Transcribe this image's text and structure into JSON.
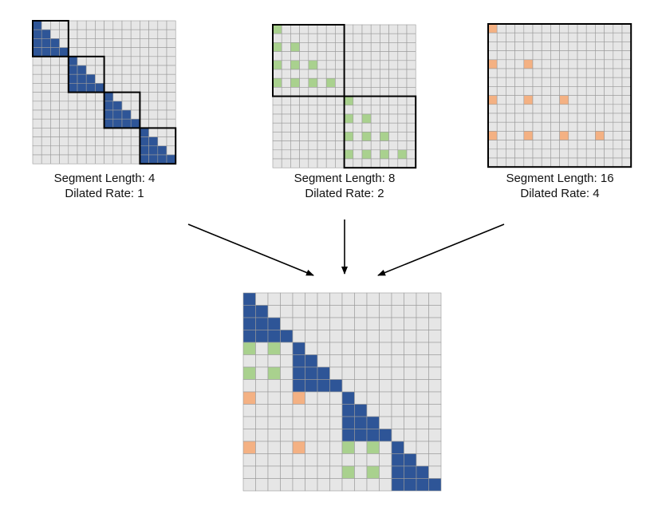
{
  "colors": {
    "cell_empty": "#e6e6e6",
    "grid_line": "#9a9a9a",
    "border": "#000000",
    "blue": "#2e5597",
    "green": "#a9d18e",
    "orange": "#f4b183"
  },
  "panels": [
    {
      "caption_line1": "Segment Length: 4",
      "caption_line2": "Dilated Rate: 1",
      "color": "blue"
    },
    {
      "caption_line1": "Segment Length: 8",
      "caption_line2": "Dilated Rate: 2",
      "color": "green"
    },
    {
      "caption_line1": "Segment Length: 16",
      "caption_line2": "Dilated Rate: 4",
      "color": "orange"
    }
  ],
  "grid_size": 16
}
